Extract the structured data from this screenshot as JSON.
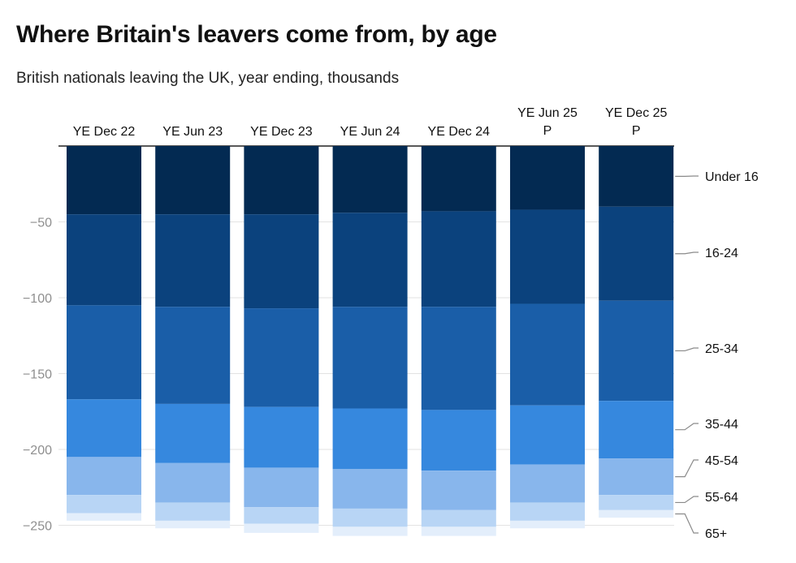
{
  "title": "Where Britain's leavers come from, by age",
  "subtitle": "British nationals leaving the UK, year ending, thousands",
  "chart_data": {
    "type": "bar",
    "stacked": true,
    "direction": "negative-down",
    "title": "Where Britain's leavers come from, by age",
    "subtitle": "British nationals leaving the UK, year ending, thousands",
    "categories": [
      [
        "YE Dec 22"
      ],
      [
        "YE Jun 23"
      ],
      [
        "YE Dec 23"
      ],
      [
        "YE Jun 24"
      ],
      [
        "YE Dec 24"
      ],
      [
        "YE Jun 25",
        "P"
      ],
      [
        "YE Dec 25",
        "P"
      ]
    ],
    "ylim": [
      -255,
      0
    ],
    "yticks": [
      -50,
      -100,
      -150,
      -200,
      -250
    ],
    "ytick_labels": [
      "−50",
      "−100",
      "−150",
      "−200",
      "−250"
    ],
    "grid": true,
    "legend_position": "right, inline labels",
    "series": [
      {
        "name": "Under 16",
        "color": "#032a52",
        "values": [
          -45,
          -45,
          -45,
          -44,
          -43,
          -42,
          -40
        ]
      },
      {
        "name": "16-24",
        "color": "#0b427d",
        "values": [
          -60,
          -61,
          -62,
          -62,
          -63,
          -62,
          -62
        ]
      },
      {
        "name": "25-34",
        "color": "#1a5ea8",
        "values": [
          -62,
          -64,
          -65,
          -67,
          -68,
          -67,
          -66
        ]
      },
      {
        "name": "35-44",
        "color": "#3688de",
        "values": [
          -38,
          -39,
          -40,
          -40,
          -40,
          -39,
          -38
        ]
      },
      {
        "name": "45-54",
        "color": "#88b6ec",
        "values": [
          -25,
          -26,
          -26,
          -26,
          -26,
          -25,
          -24
        ]
      },
      {
        "name": "55-64",
        "color": "#b8d5f5",
        "values": [
          -12,
          -12,
          -11,
          -12,
          -11,
          -12,
          -10
        ]
      },
      {
        "name": "65+",
        "color": "#e3eefb",
        "values": [
          -5,
          -5,
          -6,
          -6,
          -6,
          -5,
          -5
        ]
      }
    ]
  }
}
